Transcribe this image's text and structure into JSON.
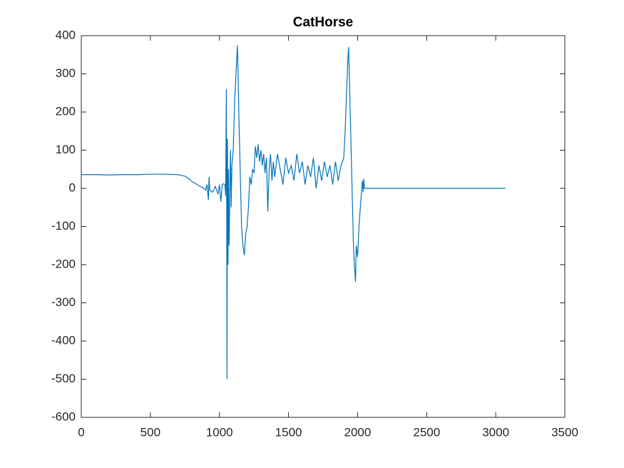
{
  "chart_data": {
    "type": "line",
    "title": "CatHorse",
    "x": [
      0,
      100,
      200,
      300,
      400,
      500,
      600,
      700,
      750,
      780,
      800,
      830,
      860,
      880,
      900,
      910,
      920,
      925,
      930,
      950,
      970,
      990,
      1000,
      1010,
      1020,
      1030,
      1040,
      1045,
      1050,
      1053,
      1055,
      1058,
      1062,
      1065,
      1070,
      1075,
      1080,
      1085,
      1090,
      1100,
      1110,
      1120,
      1130,
      1135,
      1140,
      1150,
      1160,
      1170,
      1180,
      1190,
      1200,
      1210,
      1220,
      1230,
      1240,
      1250,
      1260,
      1270,
      1280,
      1290,
      1300,
      1310,
      1320,
      1330,
      1340,
      1350,
      1360,
      1370,
      1380,
      1390,
      1400,
      1420,
      1440,
      1460,
      1480,
      1500,
      1520,
      1540,
      1560,
      1580,
      1600,
      1620,
      1640,
      1660,
      1680,
      1700,
      1720,
      1740,
      1760,
      1780,
      1800,
      1820,
      1840,
      1860,
      1880,
      1900,
      1910,
      1920,
      1930,
      1935,
      1940,
      1950,
      1960,
      1970,
      1975,
      1985,
      1990,
      2000,
      2010,
      2020,
      2030,
      2035,
      2040,
      2045,
      2050,
      2060,
      2500,
      3070
    ],
    "series": [
      {
        "name": "CatHorse",
        "color": "#0072BD",
        "values": [
          36,
          36,
          35,
          36,
          36,
          37,
          37,
          36,
          32,
          25,
          18,
          12,
          5,
          2,
          -5,
          10,
          -30,
          30,
          -5,
          -10,
          5,
          -15,
          10,
          -35,
          10,
          12,
          10,
          -20,
          260,
          -100,
          -500,
          130,
          -200,
          50,
          -150,
          -10,
          100,
          -50,
          60,
          100,
          230,
          300,
          375,
          300,
          200,
          50,
          -100,
          -150,
          -175,
          -120,
          -100,
          -50,
          30,
          10,
          50,
          40,
          110,
          80,
          115,
          70,
          100,
          60,
          90,
          40,
          80,
          -60,
          50,
          90,
          20,
          70,
          30,
          90,
          50,
          10,
          80,
          40,
          60,
          20,
          90,
          40,
          70,
          10,
          60,
          30,
          80,
          0,
          60,
          20,
          70,
          30,
          60,
          10,
          70,
          20,
          60,
          80,
          150,
          250,
          340,
          370,
          300,
          150,
          0,
          -150,
          -190,
          -245,
          -150,
          -180,
          -100,
          -50,
          0,
          20,
          -10,
          25,
          0,
          0,
          0,
          0
        ]
      }
    ],
    "xlim": [
      0,
      3500
    ],
    "xticks": [
      0,
      500,
      1000,
      1500,
      2000,
      2500,
      3000,
      3500
    ],
    "ylim": [
      -600,
      400
    ],
    "yticks": [
      -600,
      -500,
      -400,
      -300,
      -200,
      -100,
      0,
      100,
      200,
      300,
      400
    ]
  }
}
